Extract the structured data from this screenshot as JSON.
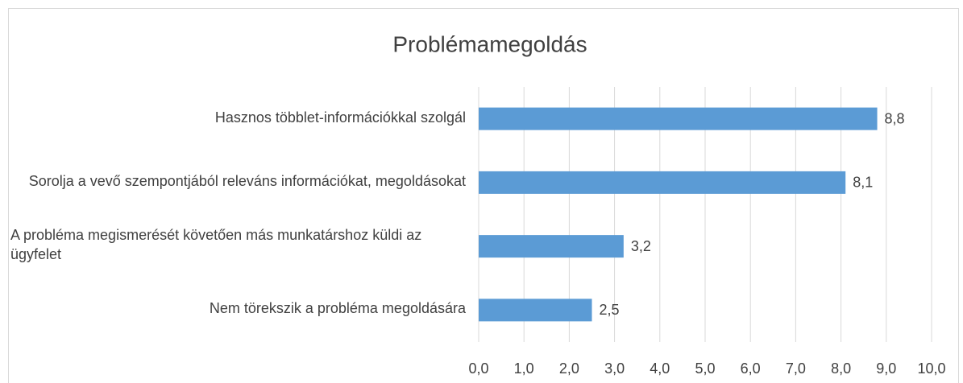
{
  "chart_data": {
    "type": "bar",
    "orientation": "horizontal",
    "title": "Problémamegoldás",
    "categories": [
      "Hasznos többlet-információkkal szolgál",
      "Sorolja a vevő szempontjából releváns információkat, megoldásokat",
      "A probléma megismerését követően más munkatárshoz küldi az ügyfelet",
      "Nem törekszik a probléma megoldására"
    ],
    "values": [
      8.8,
      8.1,
      3.2,
      2.5
    ],
    "value_labels": [
      "8,8",
      "8,1",
      "3,2",
      "2,5"
    ],
    "color": "#5b9bd5",
    "xlim": [
      0,
      10
    ],
    "xticks": [
      {
        "value": 0,
        "label": "0,0"
      },
      {
        "value": 1,
        "label": "1,0"
      },
      {
        "value": 2,
        "label": "2,0"
      },
      {
        "value": 3,
        "label": "3,0"
      },
      {
        "value": 4,
        "label": "4,0"
      },
      {
        "value": 5,
        "label": "5,0"
      },
      {
        "value": 6,
        "label": "6,0"
      },
      {
        "value": 7,
        "label": "7,0"
      },
      {
        "value": 8,
        "label": "8,0"
      },
      {
        "value": 9,
        "label": "9,0"
      },
      {
        "value": 10,
        "label": "10,0"
      }
    ],
    "grid": true
  }
}
